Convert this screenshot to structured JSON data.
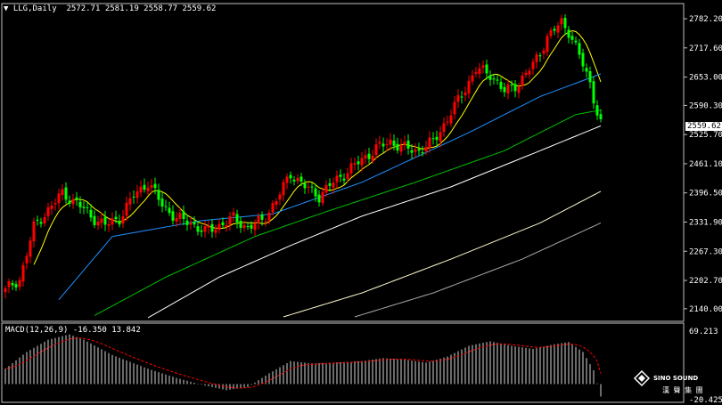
{
  "header": {
    "symbol_period": "LLG,Daily",
    "ohlc": "2572.71 2581.19 2558.77 2559.62"
  },
  "macd_header": {
    "label": "MACD(12,26,9)",
    "values": "-16.350 13.842"
  },
  "current_price": "2559.62",
  "logo": {
    "text": "SINO SOUND",
    "subtext": "漢 聲 集 團"
  },
  "colors": {
    "up": "#ff0000",
    "down": "#00ff00",
    "grid": "#c0c0c0",
    "ma_fast": "#ffff00",
    "ma_mid": "#1e90ff",
    "ma_slow": "#00c000",
    "ma_long": "#ffffff",
    "ma_200": "#fffacd",
    "ma_300": "#a9a9a9",
    "signal": "#ff0000",
    "hist": "#d3d3d3"
  },
  "chart_data": [
    {
      "type": "candlestick",
      "title": "LLG,Daily",
      "ylim": [
        2120,
        2800
      ],
      "y_ticks": [
        "2782.20",
        "2717.60",
        "2653.00",
        "2590.30",
        "2525.70",
        "2461.10",
        "2396.50",
        "2331.90",
        "2267.30",
        "2202.70",
        "2140.00"
      ],
      "anchors": [
        {
          "i": 0,
          "c": 2180
        },
        {
          "i": 4,
          "c": 2205
        },
        {
          "i": 8,
          "c": 2320
        },
        {
          "i": 12,
          "c": 2360
        },
        {
          "i": 16,
          "c": 2395
        },
        {
          "i": 20,
          "c": 2375
        },
        {
          "i": 24,
          "c": 2345
        },
        {
          "i": 28,
          "c": 2325
        },
        {
          "i": 32,
          "c": 2340
        },
        {
          "i": 36,
          "c": 2390
        },
        {
          "i": 40,
          "c": 2420
        },
        {
          "i": 44,
          "c": 2370
        },
        {
          "i": 48,
          "c": 2340
        },
        {
          "i": 52,
          "c": 2330
        },
        {
          "i": 56,
          "c": 2310
        },
        {
          "i": 60,
          "c": 2325
        },
        {
          "i": 64,
          "c": 2340
        },
        {
          "i": 68,
          "c": 2320
        },
        {
          "i": 72,
          "c": 2335
        },
        {
          "i": 76,
          "c": 2380
        },
        {
          "i": 80,
          "c": 2440
        },
        {
          "i": 84,
          "c": 2410
        },
        {
          "i": 88,
          "c": 2390
        },
        {
          "i": 92,
          "c": 2420
        },
        {
          "i": 96,
          "c": 2445
        },
        {
          "i": 100,
          "c": 2470
        },
        {
          "i": 104,
          "c": 2495
        },
        {
          "i": 108,
          "c": 2510
        },
        {
          "i": 112,
          "c": 2495
        },
        {
          "i": 116,
          "c": 2490
        },
        {
          "i": 120,
          "c": 2510
        },
        {
          "i": 124,
          "c": 2560
        },
        {
          "i": 128,
          "c": 2615
        },
        {
          "i": 132,
          "c": 2670
        },
        {
          "i": 136,
          "c": 2660
        },
        {
          "i": 140,
          "c": 2620
        },
        {
          "i": 144,
          "c": 2640
        },
        {
          "i": 148,
          "c": 2680
        },
        {
          "i": 152,
          "c": 2740
        },
        {
          "i": 156,
          "c": 2775
        },
        {
          "i": 158,
          "c": 2755
        },
        {
          "i": 161,
          "c": 2700
        },
        {
          "i": 164,
          "c": 2640
        },
        {
          "i": 166,
          "c": 2575
        },
        {
          "i": 167,
          "c": 2560
        }
      ],
      "series": [
        {
          "name": "",
          "type": "ma",
          "color": "ma_fast",
          "window": 8
        },
        {
          "name": "",
          "type": "ma",
          "color": "ma_mid",
          "anchors": [
            {
              "i": 15,
              "c": 2160
            },
            {
              "i": 30,
              "c": 2300
            },
            {
              "i": 55,
              "c": 2335
            },
            {
              "i": 75,
              "c": 2350
            },
            {
              "i": 100,
              "c": 2420
            },
            {
              "i": 130,
              "c": 2530
            },
            {
              "i": 150,
              "c": 2610
            },
            {
              "i": 167,
              "c": 2660
            }
          ]
        },
        {
          "name": "",
          "type": "ma",
          "color": "ma_slow",
          "anchors": [
            {
              "i": 25,
              "c": 2125
            },
            {
              "i": 45,
              "c": 2210
            },
            {
              "i": 70,
              "c": 2300
            },
            {
              "i": 90,
              "c": 2355
            },
            {
              "i": 115,
              "c": 2420
            },
            {
              "i": 140,
              "c": 2490
            },
            {
              "i": 160,
              "c": 2570
            },
            {
              "i": 167,
              "c": 2580
            }
          ]
        },
        {
          "name": "",
          "type": "ma",
          "color": "ma_long",
          "anchors": [
            {
              "i": 40,
              "c": 2120
            },
            {
              "i": 60,
              "c": 2210
            },
            {
              "i": 80,
              "c": 2280
            },
            {
              "i": 100,
              "c": 2345
            },
            {
              "i": 125,
              "c": 2410
            },
            {
              "i": 150,
              "c": 2490
            },
            {
              "i": 167,
              "c": 2545
            }
          ]
        },
        {
          "name": "",
          "type": "ma",
          "color": "ma_200",
          "anchors": [
            {
              "i": 78,
              "c": 2122
            },
            {
              "i": 100,
              "c": 2175
            },
            {
              "i": 125,
              "c": 2250
            },
            {
              "i": 150,
              "c": 2330
            },
            {
              "i": 167,
              "c": 2400
            }
          ]
        },
        {
          "name": "",
          "type": "ma",
          "color": "ma_300",
          "anchors": [
            {
              "i": 98,
              "c": 2122
            },
            {
              "i": 120,
              "c": 2175
            },
            {
              "i": 145,
              "c": 2250
            },
            {
              "i": 167,
              "c": 2330
            }
          ]
        }
      ]
    },
    {
      "type": "bar",
      "title": "MACD(12,26,9) -16.350 13.842",
      "ylim": [
        -20.425,
        69.213
      ],
      "y_ticks": [
        "69.213",
        "-20.425"
      ],
      "macd_anchors": [
        {
          "i": 0,
          "v": 20
        },
        {
          "i": 6,
          "v": 42
        },
        {
          "i": 12,
          "v": 58
        },
        {
          "i": 18,
          "v": 65
        },
        {
          "i": 22,
          "v": 58
        },
        {
          "i": 30,
          "v": 38
        },
        {
          "i": 40,
          "v": 20
        },
        {
          "i": 48,
          "v": 8
        },
        {
          "i": 56,
          "v": -2
        },
        {
          "i": 62,
          "v": -8
        },
        {
          "i": 68,
          "v": -4
        },
        {
          "i": 74,
          "v": 14
        },
        {
          "i": 80,
          "v": 30
        },
        {
          "i": 86,
          "v": 27
        },
        {
          "i": 92,
          "v": 28
        },
        {
          "i": 100,
          "v": 30
        },
        {
          "i": 106,
          "v": 34
        },
        {
          "i": 112,
          "v": 32
        },
        {
          "i": 118,
          "v": 28
        },
        {
          "i": 124,
          "v": 36
        },
        {
          "i": 130,
          "v": 50
        },
        {
          "i": 136,
          "v": 56
        },
        {
          "i": 142,
          "v": 50
        },
        {
          "i": 148,
          "v": 46
        },
        {
          "i": 154,
          "v": 52
        },
        {
          "i": 158,
          "v": 55
        },
        {
          "i": 162,
          "v": 42
        },
        {
          "i": 165,
          "v": 18
        },
        {
          "i": 167,
          "v": -16.35
        }
      ],
      "signal_last": 13.842
    }
  ]
}
